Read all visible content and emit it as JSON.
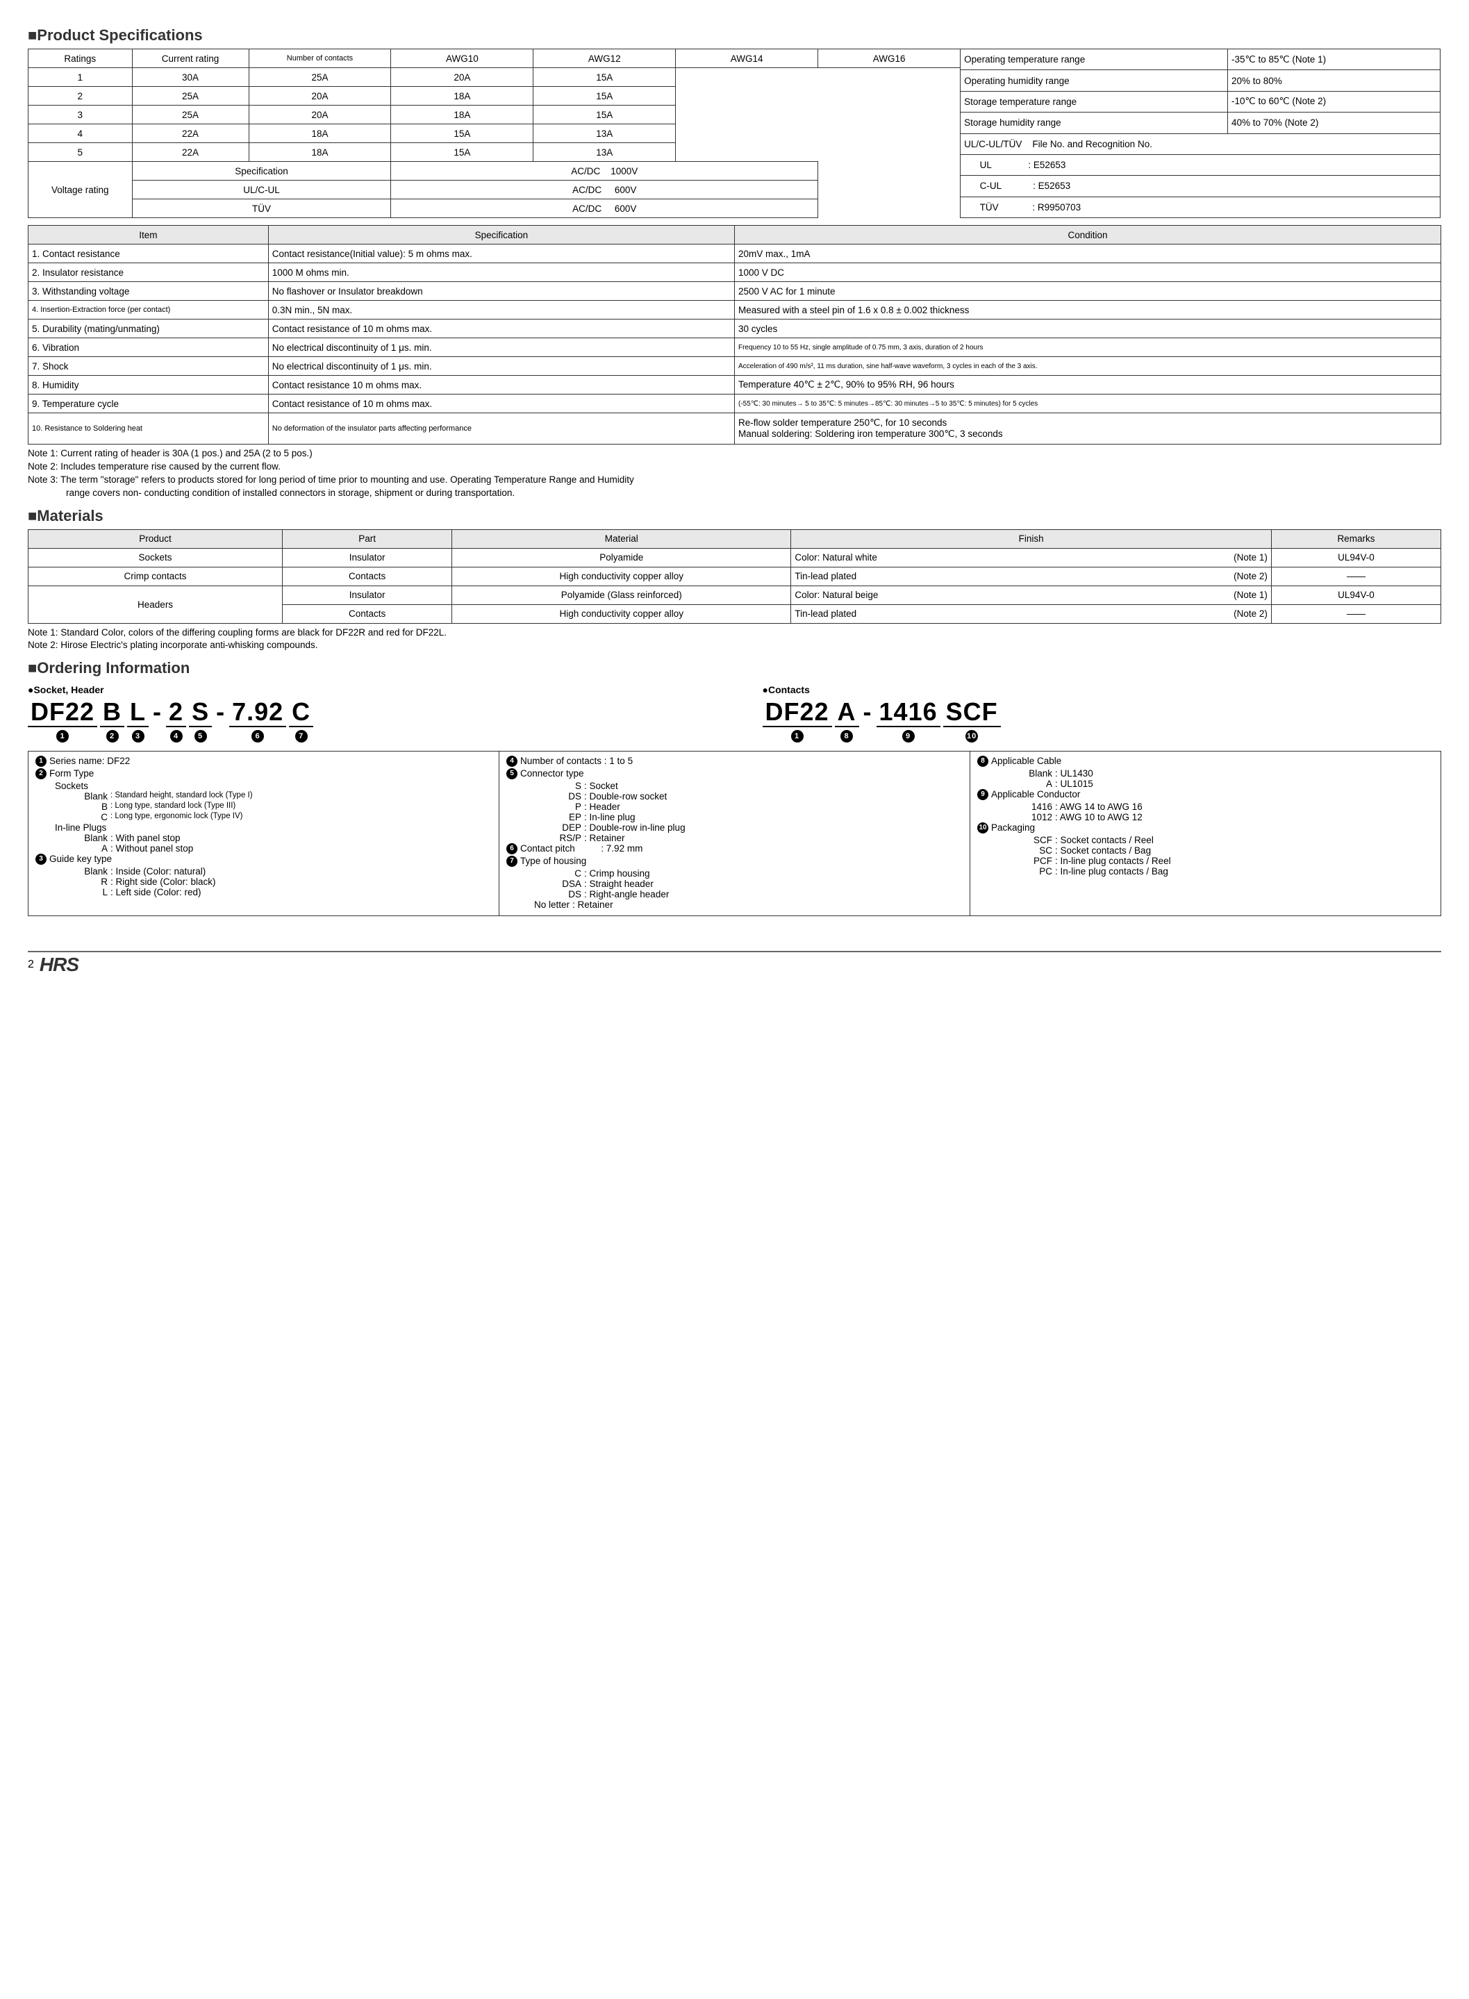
{
  "section_titles": {
    "specs": "■Product Specifications",
    "materials": "■Materials",
    "ordering": "■Ordering Information"
  },
  "ratings": {
    "row_label": "Ratings",
    "current_label": "Current rating",
    "voltage_label": "Voltage rating",
    "header_cells": [
      "Number of contacts",
      "AWG10",
      "AWG12",
      "AWG14",
      "AWG16"
    ],
    "current_rows": [
      [
        "1",
        "30A",
        "25A",
        "20A",
        "15A"
      ],
      [
        "2",
        "25A",
        "20A",
        "18A",
        "15A"
      ],
      [
        "3",
        "25A",
        "20A",
        "18A",
        "15A"
      ],
      [
        "4",
        "22A",
        "18A",
        "15A",
        "13A"
      ],
      [
        "5",
        "22A",
        "18A",
        "15A",
        "13A"
      ]
    ],
    "voltage_rows": [
      [
        "Specification",
        "AC/DC    1000V"
      ],
      [
        "UL/C-UL",
        "AC/DC     600V"
      ],
      [
        "TÜV",
        "AC/DC     600V"
      ]
    ],
    "right_rows": [
      [
        "Operating temperature range",
        "-35℃ to 85℃ (Note 1)"
      ],
      [
        "Operating humidity range",
        "20% to 80%"
      ],
      [
        "Storage temperature range",
        "-10℃ to 60℃ (Note 2)"
      ],
      [
        "Storage humidity range",
        "40% to 70% (Note 2)"
      ]
    ],
    "cert_header": "UL/C-UL/TÜV    File No. and Recognition No.",
    "cert_rows": [
      [
        "UL",
        ": E52653"
      ],
      [
        "C-UL",
        ": E52653"
      ],
      [
        "TÜV",
        ": R9950703"
      ]
    ]
  },
  "spec_table": {
    "headers": [
      "Item",
      "Specification",
      "Condition"
    ],
    "rows": [
      [
        "1. Contact resistance",
        "Contact resistance(Initial value): 5 m ohms max.",
        "20mV max., 1mA"
      ],
      [
        "2. Insulator resistance",
        "1000 M ohms min.",
        "1000 V DC"
      ],
      [
        "3. Withstanding voltage",
        "No flashover or Insulator breakdown",
        "2500 V AC for 1 minute"
      ],
      [
        "4. Insertion-Extraction force (per contact)",
        "0.3N min., 5N max.",
        "Measured with a steel pin of 1.6 x 0.8 ± 0.002 thickness"
      ],
      [
        "5. Durability (mating/unmating)",
        "Contact resistance of 10 m ohms max.",
        "30 cycles"
      ],
      [
        "6. Vibration",
        "No electrical discontinuity of 1 μs. min.",
        "Frequency 10 to 55 Hz, single amplitude of 0.75 mm, 3 axis, duration of 2 hours"
      ],
      [
        "7. Shock",
        "No electrical discontinuity of 1 μs. min.",
        "Acceleration of 490 m/s², 11 ms duration, sine half-wave waveform, 3 cycles in each of the 3 axis."
      ],
      [
        "8. Humidity",
        "Contact resistance 10 m ohms max.",
        "Temperature 40℃ ± 2℃, 90% to 95% RH, 96 hours"
      ],
      [
        "9. Temperature cycle",
        "Contact resistance of 10 m ohms max.",
        "(-55℃: 30 minutes→ 5 to 35℃: 5 minutes→85℃: 30 minutes→5 to 35℃: 5 minutes) for 5 cycles"
      ],
      [
        "10. Resistance to Soldering heat",
        "No deformation of the insulator parts affecting performance",
        "Re-flow solder temperature 250℃, for 10 seconds\nManual soldering: Soldering iron temperature 300℃, 3 seconds"
      ]
    ],
    "small_row_indexes": [
      3,
      9
    ],
    "small_col2_indexes": [
      9
    ],
    "small_col3_indexes": [
      5,
      6,
      8
    ]
  },
  "spec_notes": [
    "Note 1: Current rating of header is 30A (1 pos.) and 25A (2 to 5 pos.)",
    "Note 2: Includes temperature rise caused by the current flow.",
    "Note 3: The term \"storage\" refers to products stored for long period of time prior to mounting and use. Operating Temperature Range and Humidity",
    "range covers non- conducting condition of installed connectors in storage, shipment or during transportation."
  ],
  "materials": {
    "headers": [
      "Product",
      "Part",
      "Material",
      "Finish",
      "Remarks"
    ],
    "rows": [
      [
        "Sockets",
        "Insulator",
        "Polyamide",
        "Color: Natural white",
        "(Note 1)",
        "UL94V-0"
      ],
      [
        "Crimp contacts",
        "Contacts",
        "High conductivity copper alloy",
        "Tin-lead plated",
        "(Note 2)",
        "——"
      ],
      [
        "Headers",
        "Insulator",
        "Polyamide (Glass reinforced)",
        "Color: Natural beige",
        "(Note 1)",
        "UL94V-0"
      ],
      [
        "",
        "Contacts",
        "High conductivity copper alloy",
        "Tin-lead plated",
        "(Note 2)",
        "——"
      ]
    ]
  },
  "materials_notes": [
    "Note 1: Standard Color, colors of the differing coupling forms are black for DF22R and red for DF22L.",
    "Note 2: Hirose Electric's plating incorporate anti-whisking compounds."
  ],
  "ordering": {
    "socket_header_label": "●Socket, Header",
    "contacts_label": "●Contacts",
    "part1": [
      {
        "text": "DF22",
        "num": "1"
      },
      {
        "text": "B",
        "num": "2"
      },
      {
        "text": "L",
        "num": "3"
      },
      {
        "dash": "-"
      },
      {
        "text": "2",
        "num": "4"
      },
      {
        "text": "S",
        "num": "5"
      },
      {
        "dash": "-"
      },
      {
        "text": "7.92",
        "num": "6"
      },
      {
        "text": "C",
        "num": "7"
      }
    ],
    "part2": [
      {
        "text": "DF22",
        "num": "1"
      },
      {
        "text": "A",
        "num": "8"
      },
      {
        "dash": "-"
      },
      {
        "text": "1416",
        "num": "9"
      },
      {
        "text": "SCF",
        "num": "10"
      }
    ],
    "col1": [
      {
        "num": "1",
        "label": "Series name: DF22"
      },
      {
        "num": "2",
        "label": "Form Type"
      },
      {
        "sub_header": "Sockets"
      },
      {
        "code": "Blank",
        "desc": ": Standard height, standard lock (Type I)",
        "small": true
      },
      {
        "code": "B",
        "desc": ": Long type, standard lock (Type III)",
        "small": true
      },
      {
        "code": "C",
        "desc": ": Long type, ergonomic lock (Type IV)",
        "small": true
      },
      {
        "sub_header": "In-line Plugs"
      },
      {
        "code": "Blank",
        "desc": ": With panel stop"
      },
      {
        "code": "A",
        "desc": ": Without panel stop"
      },
      {
        "num": "3",
        "label": "Guide key type"
      },
      {
        "code": "Blank",
        "desc": ": Inside (Color: natural)"
      },
      {
        "code": "R",
        "desc": ": Right side (Color: black)"
      },
      {
        "code": "L",
        "desc": ": Left side (Color: red)"
      }
    ],
    "col2": [
      {
        "num": "4",
        "label": "Number of contacts : 1 to 5"
      },
      {
        "num": "5",
        "label": "Connector type"
      },
      {
        "code": "S",
        "desc": ": Socket"
      },
      {
        "code": "DS",
        "desc": ": Double-row socket"
      },
      {
        "code": "P",
        "desc": ": Header"
      },
      {
        "code": "EP",
        "desc": ": In-line plug"
      },
      {
        "code": "DEP",
        "desc": ": Double-row in-line plug"
      },
      {
        "code": "RS/P",
        "desc": ": Retainer"
      },
      {
        "num": "6",
        "label": "Contact pitch          : 7.92 mm"
      },
      {
        "num": "7",
        "label": "Type of housing"
      },
      {
        "code": "C",
        "desc": ": Crimp housing"
      },
      {
        "code": "DSA",
        "desc": ": Straight header"
      },
      {
        "code": "DS",
        "desc": ": Right-angle header"
      },
      {
        "code": "No letter",
        "desc": ": Retainer",
        "noletter": true
      }
    ],
    "col3": [
      {
        "num": "8",
        "label": "Applicable Cable"
      },
      {
        "code": "Blank",
        "desc": ": UL1430"
      },
      {
        "code": "A",
        "desc": ": UL1015"
      },
      {
        "num": "9",
        "label": "Applicable Conductor"
      },
      {
        "code": "1416",
        "desc": ": AWG 14 to AWG 16"
      },
      {
        "code": "1012",
        "desc": ": AWG 10 to AWG 12"
      },
      {
        "num": "10",
        "label": "Packaging"
      },
      {
        "code": "SCF",
        "desc": ": Socket contacts / Reel"
      },
      {
        "code": "SC",
        "desc": ": Socket contacts / Bag"
      },
      {
        "code": "PCF",
        "desc": ": In-line plug contacts / Reel"
      },
      {
        "code": "PC",
        "desc": ": In-line plug contacts / Bag"
      }
    ]
  },
  "footer": {
    "page": "2",
    "logo": "HRS"
  }
}
